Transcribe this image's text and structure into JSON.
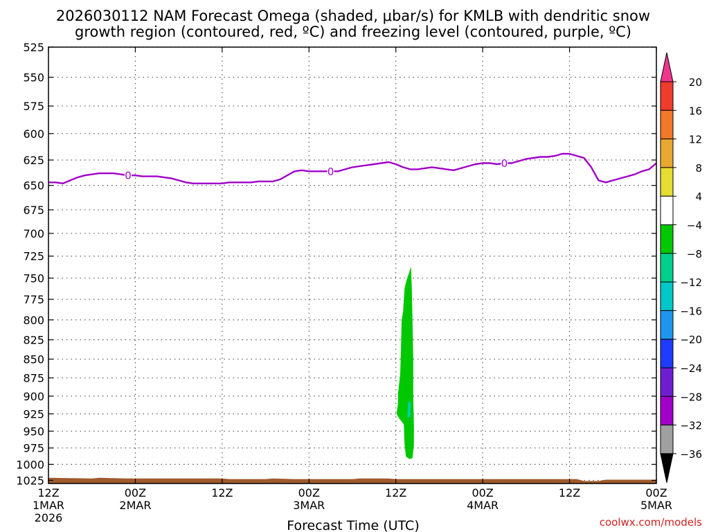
{
  "chart_data": {
    "type": "heatmap",
    "title_line1": "2026030112 NAM Forecast Omega (shaded, μbar/s) for KMLB with dendritic snow",
    "title_line2": "growth region (contoured, red, ºC) and freezing level (contoured, purple, ºC)",
    "xlabel": "Forecast Time (UTC)",
    "credit": "coolwx.com/models",
    "x_hours_range": [
      0,
      84
    ],
    "y_range_hpa": [
      525,
      1030
    ],
    "y_ticks": [
      525,
      550,
      575,
      600,
      625,
      650,
      675,
      700,
      725,
      750,
      775,
      800,
      825,
      850,
      875,
      900,
      925,
      950,
      975,
      1000,
      1025
    ],
    "x_ticks": [
      {
        "hour": 0,
        "time": "12Z",
        "date": "1MAR",
        "year": "2026"
      },
      {
        "hour": 12,
        "time": "00Z",
        "date": "2MAR",
        "year": ""
      },
      {
        "hour": 24,
        "time": "12Z",
        "date": "",
        "year": ""
      },
      {
        "hour": 36,
        "time": "00Z",
        "date": "3MAR",
        "year": ""
      },
      {
        "hour": 48,
        "time": "12Z",
        "date": "",
        "year": ""
      },
      {
        "hour": 60,
        "time": "00Z",
        "date": "4MAR",
        "year": ""
      },
      {
        "hour": 72,
        "time": "12Z",
        "date": "",
        "year": ""
      },
      {
        "hour": 84,
        "time": "00Z",
        "date": "5MAR",
        "year": ""
      }
    ],
    "freezing_level": {
      "label": "0",
      "color": "#a000c8",
      "label_hours": [
        11,
        39,
        63
      ],
      "points": [
        [
          0,
          647
        ],
        [
          1,
          647
        ],
        [
          2,
          648
        ],
        [
          3,
          645
        ],
        [
          4,
          642
        ],
        [
          5,
          640
        ],
        [
          6,
          639
        ],
        [
          7,
          638
        ],
        [
          8,
          638
        ],
        [
          9,
          638
        ],
        [
          10,
          639
        ],
        [
          11,
          640
        ],
        [
          12,
          640
        ],
        [
          13,
          641
        ],
        [
          14,
          641
        ],
        [
          15,
          641
        ],
        [
          16,
          642
        ],
        [
          17,
          643
        ],
        [
          18,
          645
        ],
        [
          19,
          647
        ],
        [
          20,
          648
        ],
        [
          21,
          648
        ],
        [
          22,
          648
        ],
        [
          23,
          648
        ],
        [
          24,
          648
        ],
        [
          25,
          647
        ],
        [
          26,
          647
        ],
        [
          27,
          647
        ],
        [
          28,
          647
        ],
        [
          29,
          646
        ],
        [
          30,
          646
        ],
        [
          31,
          646
        ],
        [
          32,
          644
        ],
        [
          33,
          640
        ],
        [
          34,
          636
        ],
        [
          35,
          635
        ],
        [
          36,
          636
        ],
        [
          37,
          636
        ],
        [
          38,
          636
        ],
        [
          39,
          636
        ],
        [
          40,
          636
        ],
        [
          41,
          634
        ],
        [
          42,
          632
        ],
        [
          43,
          631
        ],
        [
          44,
          630
        ],
        [
          45,
          629
        ],
        [
          46,
          628
        ],
        [
          47,
          627
        ],
        [
          48,
          629
        ],
        [
          49,
          632
        ],
        [
          50,
          634
        ],
        [
          51,
          634
        ],
        [
          52,
          633
        ],
        [
          53,
          632
        ],
        [
          54,
          633
        ],
        [
          55,
          634
        ],
        [
          56,
          635
        ],
        [
          57,
          633
        ],
        [
          58,
          631
        ],
        [
          59,
          629
        ],
        [
          60,
          628
        ],
        [
          61,
          628
        ],
        [
          62,
          629
        ],
        [
          63,
          628
        ],
        [
          64,
          628
        ],
        [
          65,
          626
        ],
        [
          66,
          624
        ],
        [
          67,
          623
        ],
        [
          68,
          622
        ],
        [
          69,
          622
        ],
        [
          70,
          621
        ],
        [
          71,
          619
        ],
        [
          72,
          619
        ],
        [
          73,
          621
        ],
        [
          74,
          623
        ],
        [
          75,
          632
        ],
        [
          76,
          645
        ],
        [
          77,
          647
        ],
        [
          78,
          645
        ],
        [
          79,
          643
        ],
        [
          80,
          641
        ],
        [
          81,
          639
        ],
        [
          82,
          636
        ],
        [
          83,
          634
        ],
        [
          84,
          628
        ]
      ]
    },
    "omega_regions": [
      {
        "color": "#00c800",
        "outline": [
          [
            48.1,
            925
          ],
          [
            48.3,
            910
          ],
          [
            48.3,
            897
          ],
          [
            48.6,
            870
          ],
          [
            48.7,
            840
          ],
          [
            48.8,
            800
          ],
          [
            49.0,
            790
          ],
          [
            49.2,
            762
          ],
          [
            49.5,
            752
          ],
          [
            49.9,
            742
          ],
          [
            50.1,
            737
          ],
          [
            50.2,
            760
          ],
          [
            50.3,
            800
          ],
          [
            50.4,
            850
          ],
          [
            50.4,
            900
          ],
          [
            50.5,
            940
          ],
          [
            50.5,
            970
          ],
          [
            50.3,
            990
          ],
          [
            49.9,
            992
          ],
          [
            49.4,
            988
          ],
          [
            49.2,
            970
          ],
          [
            49.1,
            940
          ],
          [
            48.5,
            932
          ]
        ]
      },
      {
        "color": "#00d0a0",
        "outline": [
          [
            49.6,
            930
          ],
          [
            49.7,
            908
          ],
          [
            50.1,
            908
          ],
          [
            50.0,
            930
          ]
        ]
      }
    ],
    "terrain": {
      "color": "#a05a2c",
      "top_points": [
        [
          0,
          1021
        ],
        [
          6,
          1022
        ],
        [
          7,
          1021
        ],
        [
          11,
          1022
        ],
        [
          24,
          1022
        ],
        [
          25,
          1023
        ],
        [
          30,
          1023
        ],
        [
          31,
          1022
        ],
        [
          34,
          1023
        ],
        [
          42,
          1023
        ],
        [
          43,
          1022
        ],
        [
          47,
          1022
        ],
        [
          48,
          1023
        ],
        [
          71,
          1023
        ],
        [
          73,
          1023
        ],
        [
          74,
          1026
        ],
        [
          76,
          1026
        ],
        [
          77,
          1024
        ],
        [
          84,
          1024
        ]
      ]
    },
    "colorbar": {
      "labels": [
        "20",
        "16",
        "12",
        "8",
        "4",
        "−4",
        "−8",
        "−12",
        "−16",
        "−20",
        "−24",
        "−28",
        "−32",
        "−36"
      ],
      "colors": [
        "#f0368c",
        "#f03c2c",
        "#f07828",
        "#e8a830",
        "#e6dc32",
        "#ffffff",
        "#00c800",
        "#00d08c",
        "#00c8c8",
        "#1e96f0",
        "#1e3cff",
        "#6e1ed2",
        "#a000c8",
        "#a0a0a0",
        "#000000"
      ]
    }
  }
}
